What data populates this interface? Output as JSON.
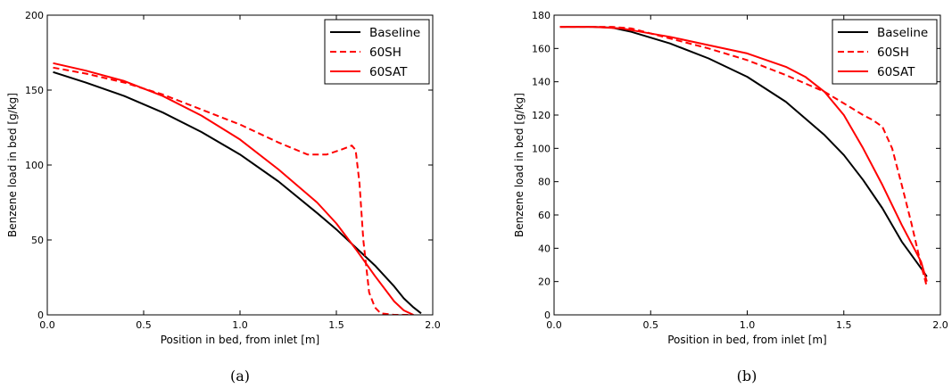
{
  "chart_data": [
    {
      "type": "line",
      "caption": "(a)",
      "xlabel": "Position in bed, from inlet [m]",
      "ylabel": "Benzene load in bed [g/kg]",
      "xlim": [
        0,
        2.0
      ],
      "ylim": [
        0,
        200
      ],
      "xticks": [
        "0.0",
        "0.5",
        "1.0",
        "1.5",
        "2.0"
      ],
      "yticks": [
        "0",
        "50",
        "100",
        "150",
        "200"
      ],
      "grid": false,
      "legend_position": "top-right",
      "series": [
        {
          "name": "Baseline",
          "color": "#000000",
          "dash": "solid",
          "x": [
            0.03,
            0.2,
            0.4,
            0.6,
            0.8,
            1.0,
            1.2,
            1.4,
            1.5,
            1.6,
            1.7,
            1.8,
            1.85,
            1.9,
            1.94
          ],
          "y": [
            162,
            155,
            146,
            135,
            122,
            107,
            89,
            68,
            57,
            45,
            33,
            19,
            11,
            5,
            1
          ]
        },
        {
          "name": "60SH",
          "color": "#ff0000",
          "dash": "dashed",
          "x": [
            0.03,
            0.2,
            0.4,
            0.6,
            0.8,
            1.0,
            1.2,
            1.35,
            1.45,
            1.52,
            1.58,
            1.6,
            1.62,
            1.64,
            1.67,
            1.7,
            1.73,
            1.8,
            1.9
          ],
          "y": [
            165,
            161,
            155,
            147,
            137,
            127,
            115,
            107,
            107,
            110,
            113,
            110,
            88,
            50,
            15,
            5,
            1,
            0,
            0
          ]
        },
        {
          "name": "60SAT",
          "color": "#ff0000",
          "dash": "solid",
          "x": [
            0.03,
            0.2,
            0.4,
            0.6,
            0.8,
            1.0,
            1.2,
            1.3,
            1.4,
            1.5,
            1.6,
            1.7,
            1.8,
            1.85,
            1.9
          ],
          "y": [
            168,
            163,
            156,
            146,
            133,
            117,
            97,
            86,
            75,
            61,
            44,
            26,
            9,
            3,
            0
          ]
        }
      ]
    },
    {
      "type": "line",
      "caption": "(b)",
      "xlabel": "Position in bed, from inlet [m]",
      "ylabel": "Benzene load in bed [g/kg]",
      "xlim": [
        0,
        2.0
      ],
      "ylim": [
        0,
        180
      ],
      "xticks": [
        "0.0",
        "0.5",
        "1.0",
        "1.5",
        "2.0"
      ],
      "yticks": [
        "0",
        "20",
        "40",
        "60",
        "80",
        "100",
        "120",
        "140",
        "160",
        "180"
      ],
      "grid": false,
      "legend_position": "top-right",
      "series": [
        {
          "name": "Baseline",
          "color": "#000000",
          "dash": "solid",
          "x": [
            0.03,
            0.2,
            0.3,
            0.4,
            0.6,
            0.8,
            1.0,
            1.2,
            1.4,
            1.5,
            1.6,
            1.7,
            1.8,
            1.9,
            1.93
          ],
          "y": [
            173,
            173,
            172.5,
            170,
            163,
            154,
            143,
            128,
            108,
            96,
            81,
            64,
            44,
            28,
            23
          ]
        },
        {
          "name": "60SH",
          "color": "#ff0000",
          "dash": "dashed",
          "x": [
            0.03,
            0.2,
            0.3,
            0.4,
            0.6,
            0.8,
            1.0,
            1.2,
            1.4,
            1.5,
            1.6,
            1.65,
            1.7,
            1.75,
            1.8,
            1.85,
            1.9,
            1.93
          ],
          "y": [
            173,
            173,
            173,
            172,
            166,
            160,
            153,
            144,
            134,
            127,
            120,
            117,
            113,
            100,
            78,
            55,
            30,
            17
          ]
        },
        {
          "name": "60SAT",
          "color": "#ff0000",
          "dash": "solid",
          "x": [
            0.03,
            0.2,
            0.35,
            0.4,
            0.6,
            0.8,
            1.0,
            1.2,
            1.3,
            1.4,
            1.5,
            1.6,
            1.7,
            1.8,
            1.9,
            1.93
          ],
          "y": [
            173,
            173,
            172,
            171,
            167,
            162,
            157,
            149,
            143,
            134,
            120,
            100,
            78,
            54,
            32,
            20
          ]
        }
      ]
    }
  ]
}
